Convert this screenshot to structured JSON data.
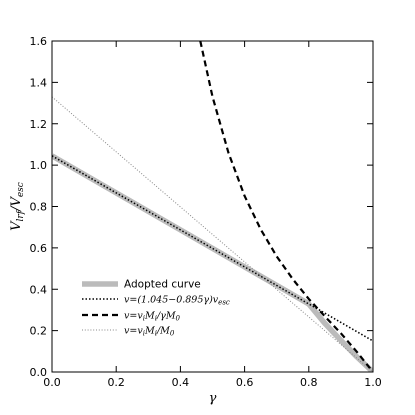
{
  "chart_data": {
    "type": "line",
    "xlabel": "γ",
    "ylabel": "V_lrf/V_esc",
    "xlim": [
      0.0,
      1.0
    ],
    "ylim": [
      0.0,
      1.6
    ],
    "x_ticks": [
      "0.0",
      "0.2",
      "0.4",
      "0.6",
      "0.8",
      "1.0"
    ],
    "y_ticks": [
      "0.0",
      "0.2",
      "0.4",
      "0.6",
      "0.8",
      "1.0",
      "1.2",
      "1.4",
      "1.6"
    ],
    "legend_position": "lower-left",
    "series": [
      {
        "name": "Adopted curve",
        "style": "thick-gray",
        "color": "#bbbbbb",
        "x": [
          0.0,
          0.1,
          0.2,
          0.3,
          0.4,
          0.5,
          0.6,
          0.7,
          0.8,
          0.85,
          0.9,
          0.95,
          1.0
        ],
        "y": [
          1.045,
          0.9555,
          0.866,
          0.7765,
          0.687,
          0.5975,
          0.508,
          0.4185,
          0.329,
          0.235,
          0.153,
          0.073,
          0.0
        ]
      },
      {
        "name": "v=(1.045−0.895γ)v_esc",
        "style": "dotted-black",
        "color": "#000000",
        "x": [
          0.0,
          0.2,
          0.4,
          0.6,
          0.8,
          1.0
        ],
        "y": [
          1.045,
          0.866,
          0.687,
          0.508,
          0.329,
          0.15
        ]
      },
      {
        "name": "v=v_i M_i/γM_0",
        "style": "dashed-black",
        "color": "#000000",
        "x": [
          0.462,
          0.5,
          0.55,
          0.6,
          0.65,
          0.7,
          0.75,
          0.8,
          0.85,
          0.9,
          0.95,
          1.0
        ],
        "y": [
          1.6,
          1.331,
          1.058,
          0.851,
          0.69,
          0.559,
          0.449,
          0.353,
          0.269,
          0.187,
          0.097,
          0.0
        ]
      },
      {
        "name": "v=v_i M_i/M_0",
        "style": "dotted-gray",
        "color": "#888888",
        "x": [
          0.0,
          0.2,
          0.4,
          0.6,
          0.8,
          1.0
        ],
        "y": [
          1.33,
          1.064,
          0.798,
          0.532,
          0.266,
          0.0
        ]
      }
    ]
  }
}
